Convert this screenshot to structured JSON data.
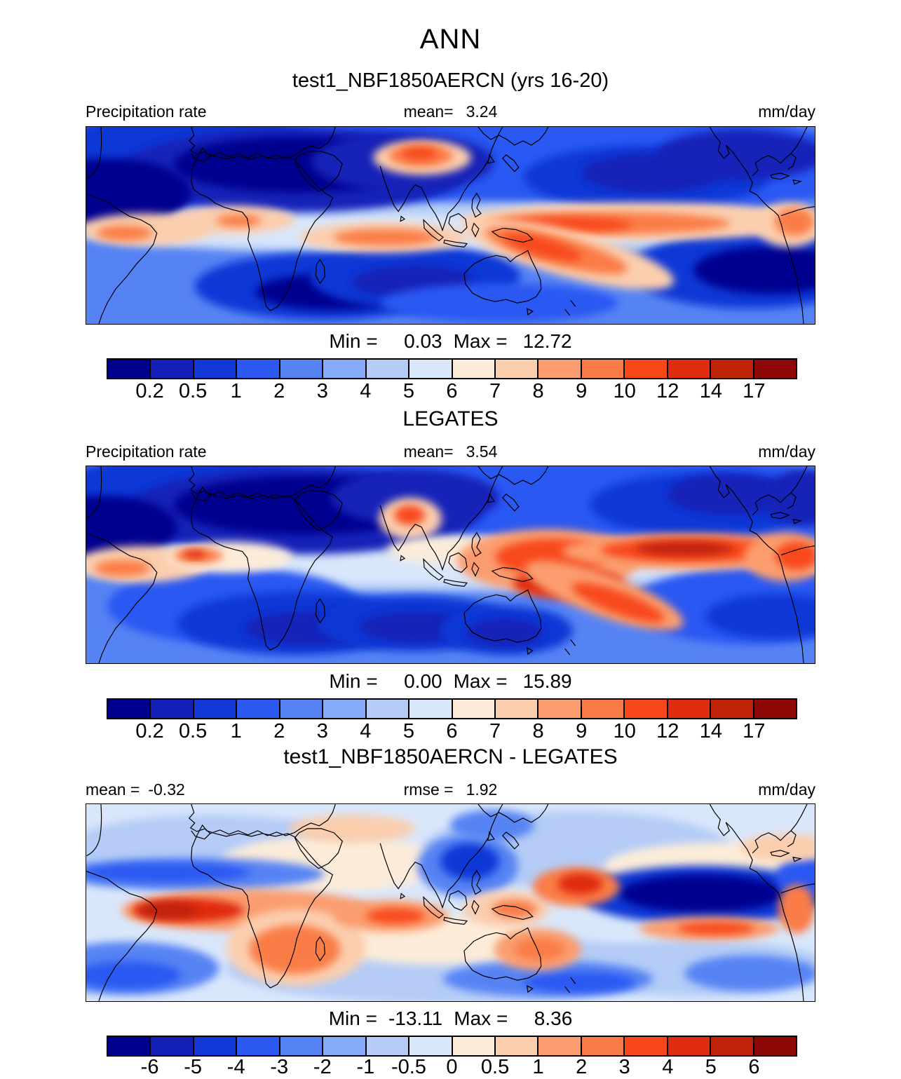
{
  "title": "ANN",
  "subtitle": "test1_NBF1850AERCN (yrs 16-20)",
  "palette": [
    "#00008f",
    "#1220b8",
    "#1137d6",
    "#2b59f2",
    "#5683f4",
    "#85aaf8",
    "#b4ccf6",
    "#d9e7fb",
    "#fcecd9",
    "#fbceae",
    "#fb9d6e",
    "#fa7d47",
    "#f8481a",
    "#e02c0e",
    "#bf2408",
    "#8f0808"
  ],
  "panels": [
    {
      "heading": "",
      "left_label": "Precipitation rate",
      "left_value": "",
      "center_label": "mean=",
      "center_value": "3.24",
      "right_label": "mm/day",
      "min_label": "Min =",
      "min_value": "0.03",
      "max_label": "Max =",
      "max_value": "12.72",
      "ticks": [
        "0.2",
        "0.5",
        "1",
        "2",
        "3",
        "4",
        "5",
        "6",
        "7",
        "8",
        "9",
        "10",
        "12",
        "14",
        "17"
      ]
    },
    {
      "heading": "LEGATES",
      "left_label": "Precipitation rate",
      "left_value": "",
      "center_label": "mean=",
      "center_value": "3.54",
      "right_label": "mm/day",
      "min_label": "Min =",
      "min_value": "0.00",
      "max_label": "Max =",
      "max_value": "15.89",
      "ticks": [
        "0.2",
        "0.5",
        "1",
        "2",
        "3",
        "4",
        "5",
        "6",
        "7",
        "8",
        "9",
        "10",
        "12",
        "14",
        "17"
      ]
    },
    {
      "heading": "test1_NBF1850AERCN - LEGATES",
      "left_label": "mean =",
      "left_value": "-0.32",
      "center_label": "rmse =",
      "center_value": "1.92",
      "right_label": "mm/day",
      "min_label": "Min =",
      "min_value": "-13.11",
      "max_label": "Max =",
      "max_value": "8.36",
      "ticks": [
        "-6",
        "-5",
        "-4",
        "-3",
        "-2",
        "-1",
        "-0.5",
        "0",
        "0.5",
        "1",
        "2",
        "3",
        "4",
        "5",
        "6"
      ]
    }
  ],
  "chart_data": {
    "type": "heatmap",
    "subtype": "filled-contour global maps (lat-lon), 3 panels",
    "season": "ANN",
    "variable": "Precipitation rate",
    "units": "mm/day",
    "panels": [
      {
        "name": "test1_NBF1850AERCN (yrs 16-20)",
        "stat_labels": {
          "mean": 3.24,
          "min": 0.03,
          "max": 12.72
        },
        "scale_ticks": [
          0.2,
          0.5,
          1,
          2,
          3,
          4,
          5,
          6,
          7,
          8,
          9,
          10,
          12,
          14,
          17
        ]
      },
      {
        "name": "LEGATES",
        "stat_labels": {
          "mean": 3.54,
          "min": 0.0,
          "max": 15.89
        },
        "scale_ticks": [
          0.2,
          0.5,
          1,
          2,
          3,
          4,
          5,
          6,
          7,
          8,
          9,
          10,
          12,
          14,
          17
        ]
      },
      {
        "name": "test1_NBF1850AERCN - LEGATES",
        "stat_labels": {
          "mean": -0.32,
          "rmse": 1.92,
          "min": -13.11,
          "max": 8.36
        },
        "scale_ticks": [
          -6,
          -5,
          -4,
          -3,
          -2,
          -1,
          -0.5,
          0,
          0.5,
          1,
          2,
          3,
          4,
          5,
          6
        ]
      }
    ],
    "colormap": [
      "#00008f",
      "#1220b8",
      "#1137d6",
      "#2b59f2",
      "#5683f4",
      "#85aaf8",
      "#b4ccf6",
      "#d9e7fb",
      "#fcecd9",
      "#fbceae",
      "#fb9d6e",
      "#fa7d47",
      "#f8481a",
      "#e02c0e",
      "#bf2408",
      "#8f0808"
    ],
    "legend_position": "horizontal colorbar below each panel",
    "grid": false
  }
}
